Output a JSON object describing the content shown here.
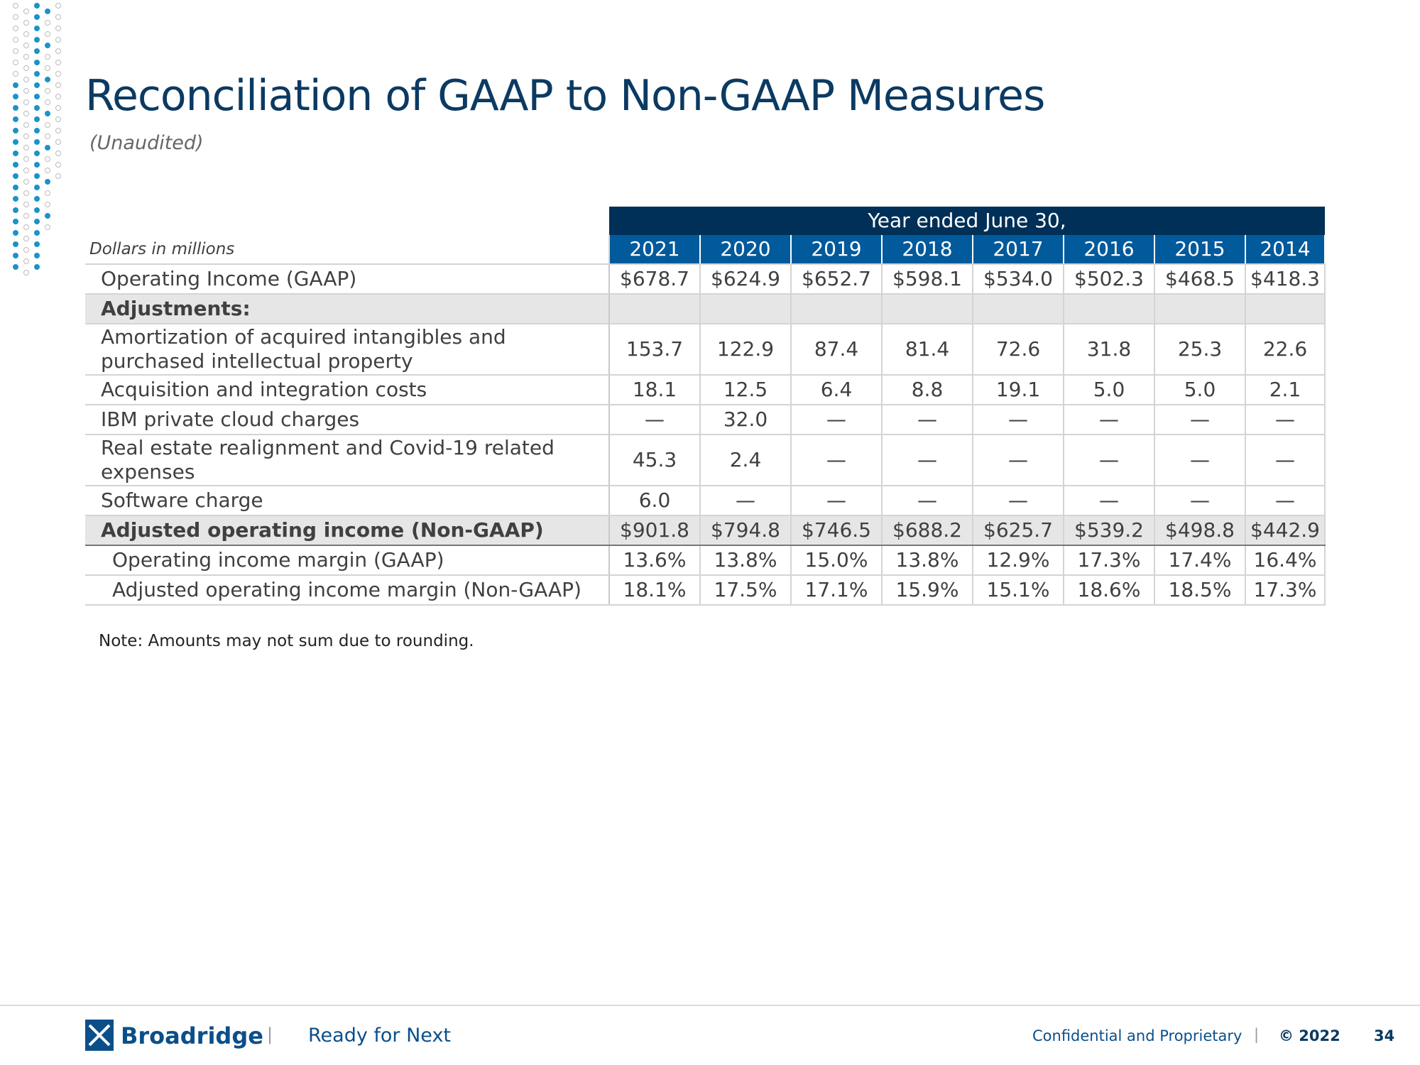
{
  "header": {
    "title": "Reconciliation of GAAP to Non-GAAP Measures",
    "subtitle": "(Unaudited)"
  },
  "table": {
    "group_header": "Year ended June 30,",
    "unit_label": "Dollars in millions",
    "columns": [
      "2021",
      "2020",
      "2019",
      "2018",
      "2017",
      "2016",
      "2015",
      "2014"
    ],
    "rows": [
      {
        "label": "Operating Income (GAAP)",
        "cells": [
          "$678.7",
          "$624.9",
          "$652.7",
          "$598.1",
          "$534.0",
          "$502.3",
          "$468.5",
          "$418.3"
        ]
      },
      {
        "label": "Adjustments:"
      },
      {
        "label": "Amortization of acquired intangibles and purchased intellectual property",
        "cells": [
          "153.7",
          "122.9",
          "87.4",
          "81.4",
          "72.6",
          "31.8",
          "25.3",
          "22.6"
        ]
      },
      {
        "label": "Acquisition and integration costs",
        "cells": [
          "18.1",
          "12.5",
          "6.4",
          "8.8",
          "19.1",
          "5.0",
          "5.0",
          "2.1"
        ]
      },
      {
        "label": "IBM private cloud charges",
        "cells": [
          "—",
          "32.0",
          "—",
          "—",
          "—",
          "—",
          "—",
          "—"
        ]
      },
      {
        "label": "Real estate realignment and Covid-19 related expenses",
        "cells": [
          "45.3",
          "2.4",
          "—",
          "—",
          "—",
          "—",
          "—",
          "—"
        ]
      },
      {
        "label": "Software charge",
        "cells": [
          "6.0",
          "—",
          "—",
          "—",
          "—",
          "—",
          "—",
          "—"
        ]
      },
      {
        "label": "Adjusted operating income (Non-GAAP)",
        "cells": [
          "$901.8",
          "$794.8",
          "$746.5",
          "$688.2",
          "$625.7",
          "$539.2",
          "$498.8",
          "$442.9"
        ]
      },
      {
        "label": "Operating income margin (GAAP)",
        "cells": [
          "13.6%",
          "13.8%",
          "15.0%",
          "13.8%",
          "12.9%",
          "17.3%",
          "17.4%",
          "16.4%"
        ]
      },
      {
        "label": "Adjusted operating income margin (Non-GAAP)",
        "cells": [
          "18.1%",
          "17.5%",
          "17.1%",
          "15.9%",
          "15.1%",
          "18.6%",
          "18.5%",
          "17.3%"
        ]
      }
    ]
  },
  "note": "Note: Amounts may not sum due to rounding.",
  "footer": {
    "brand": "Broadridge",
    "tagline": "Ready for Next",
    "confidential": "Confidential and Proprietary",
    "copyright": "© 2022",
    "page": "34"
  }
}
